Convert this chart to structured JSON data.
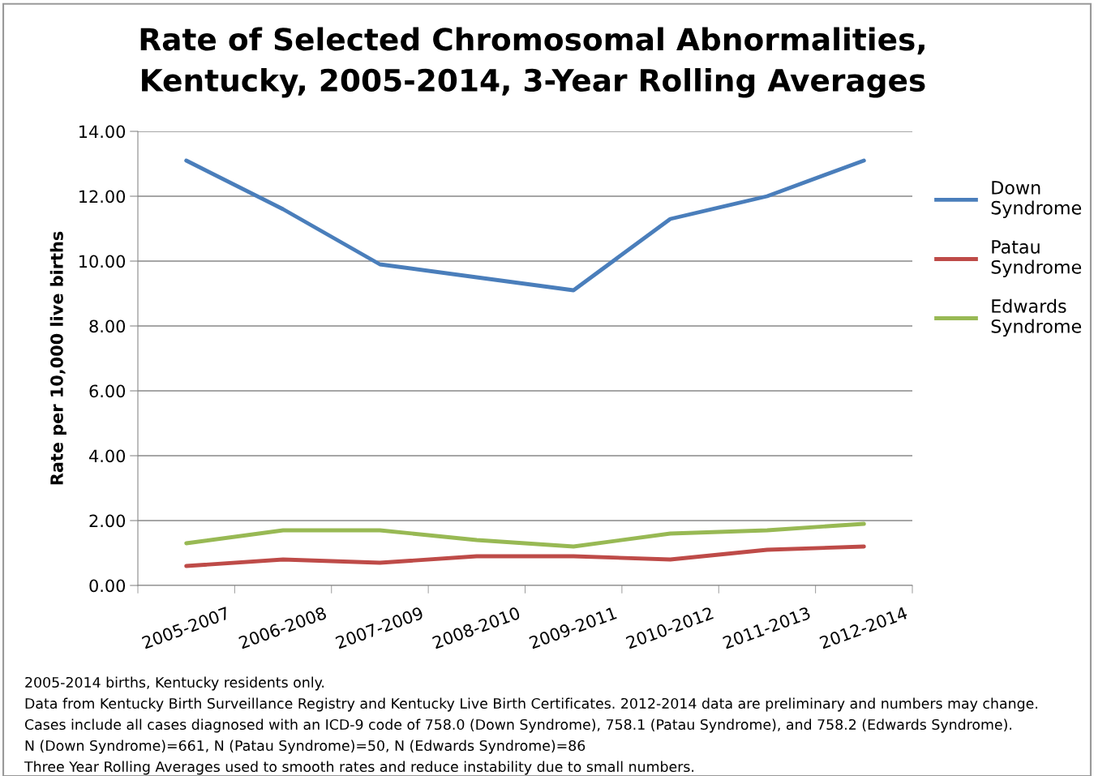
{
  "chart_data": {
    "type": "line",
    "title": "Rate of Selected Chromosomal Abnormalities,\nKentucky, 2005-2014, 3-Year Rolling Averages",
    "ylabel": "Rate per 10,000 live births",
    "categories": [
      "2005-2007",
      "2006-2008",
      "2007-2009",
      "2008-2010",
      "2009-2011",
      "2010-2012",
      "2011-2013",
      "2012-2014"
    ],
    "series": [
      {
        "name": "Down Syndrome",
        "color": "#4a7ebb",
        "values": [
          13.1,
          11.6,
          9.9,
          9.5,
          9.1,
          11.3,
          12.0,
          13.1
        ]
      },
      {
        "name": "Patau Syndrome",
        "color": "#be4b48",
        "values": [
          0.6,
          0.8,
          0.7,
          0.9,
          0.9,
          0.8,
          1.1,
          1.2
        ]
      },
      {
        "name": "Edwards Syndrome",
        "color": "#98b954",
        "values": [
          1.3,
          1.7,
          1.7,
          1.4,
          1.2,
          1.6,
          1.7,
          1.9
        ]
      }
    ],
    "ylim": [
      0,
      14
    ],
    "yticks": [
      {
        "value": 0,
        "label": "0.00"
      },
      {
        "value": 2,
        "label": "2.00"
      },
      {
        "value": 4,
        "label": "4.00"
      },
      {
        "value": 6,
        "label": "6.00"
      },
      {
        "value": 8,
        "label": "8.00"
      },
      {
        "value": 10,
        "label": "10.00"
      },
      {
        "value": 12,
        "label": "12.00"
      },
      {
        "value": 14,
        "label": "14.00"
      }
    ],
    "grid": "y",
    "legend": "right",
    "marker": "none",
    "line_style": "solid",
    "annotations": [
      "2005-2014 births, Kentucky residents only.",
      "Data from Kentucky Birth Surveillance Registry and Kentucky Live Birth Certificates. 2012-2014 data are preliminary and numbers may change.",
      "Cases include all cases diagnosed with an ICD-9 code of 758.0 (Down Syndrome), 758.1 (Patau Syndrome), and 758.2 (Edwards Syndrome).",
      "N (Down Syndrome)=661, N (Patau Syndrome)=50, N (Edwards Syndrome)=86",
      "Three Year Rolling Averages used to smooth rates and reduce instability due to small numbers."
    ]
  }
}
